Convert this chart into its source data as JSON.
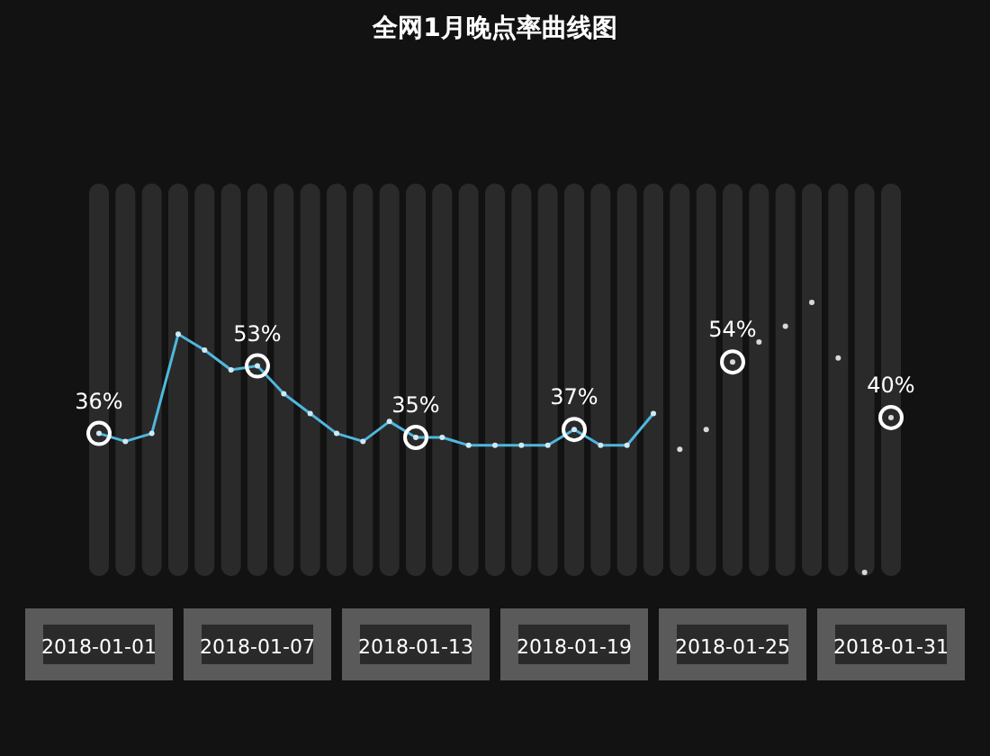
{
  "chart_data": {
    "type": "line",
    "title": "全网1月晚点率曲线图",
    "categories": [
      "2018-01-01",
      null,
      null,
      null,
      null,
      null,
      "2018-01-07",
      null,
      null,
      null,
      null,
      null,
      "2018-01-13",
      null,
      null,
      null,
      null,
      null,
      "2018-01-19",
      null,
      null,
      null,
      null,
      null,
      "2018-01-25",
      null,
      null,
      null,
      null,
      null,
      "2018-01-31"
    ],
    "tick_labels": "x",
    "marker": "circle",
    "series": [
      {
        "type": "line",
        "color": "#4fb8de",
        "values": [
          36,
          34,
          36,
          61,
          57,
          52,
          53,
          46,
          41,
          36,
          34,
          39,
          35,
          35,
          33,
          33,
          33,
          33,
          37,
          33,
          33,
          41,
          null,
          null,
          null,
          null,
          null,
          null,
          null,
          null,
          null
        ],
        "value_labels": [
          "36%",
          null,
          null,
          null,
          null,
          null,
          "53%",
          null,
          null,
          null,
          null,
          null,
          "35%",
          null,
          null,
          null,
          null,
          null,
          "37%",
          null,
          null,
          null,
          null,
          null,
          null,
          null,
          null,
          null,
          null,
          null,
          null
        ]
      },
      {
        "type": "scatter",
        "color": "#d8d8d8",
        "values": [
          null,
          null,
          null,
          null,
          null,
          null,
          null,
          null,
          null,
          null,
          null,
          null,
          null,
          null,
          null,
          null,
          null,
          null,
          null,
          null,
          null,
          null,
          32,
          37,
          54,
          59,
          63,
          69,
          55,
          1,
          40
        ],
        "value_labels": [
          null,
          null,
          null,
          null,
          null,
          null,
          null,
          null,
          null,
          null,
          null,
          null,
          null,
          null,
          null,
          null,
          null,
          null,
          null,
          null,
          null,
          null,
          null,
          null,
          "54%",
          null,
          null,
          null,
          null,
          null,
          "40%"
        ]
      }
    ]
  }
}
